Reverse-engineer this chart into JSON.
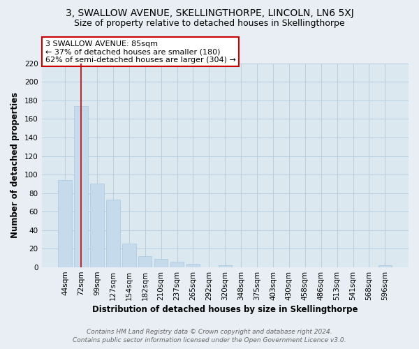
{
  "title": "3, SWALLOW AVENUE, SKELLINGTHORPE, LINCOLN, LN6 5XJ",
  "subtitle": "Size of property relative to detached houses in Skellingthorpe",
  "xlabel": "Distribution of detached houses by size in Skellingthorpe",
  "ylabel": "Number of detached properties",
  "bar_labels": [
    "44sqm",
    "72sqm",
    "99sqm",
    "127sqm",
    "154sqm",
    "182sqm",
    "210sqm",
    "237sqm",
    "265sqm",
    "292sqm",
    "320sqm",
    "348sqm",
    "375sqm",
    "403sqm",
    "430sqm",
    "458sqm",
    "486sqm",
    "513sqm",
    "541sqm",
    "568sqm",
    "596sqm"
  ],
  "bar_values": [
    94,
    174,
    90,
    73,
    26,
    12,
    9,
    6,
    4,
    0,
    2,
    0,
    0,
    0,
    0,
    0,
    0,
    0,
    0,
    0,
    2
  ],
  "bar_color_normal": "#c5daea",
  "bar_edge_color": "#a8c8e0",
  "red_line_x": 1.0,
  "annotation_line1": "3 SWALLOW AVENUE: 85sqm",
  "annotation_line2": "← 37% of detached houses are smaller (180)",
  "annotation_line3": "62% of semi-detached houses are larger (304) →",
  "ylim": [
    0,
    220
  ],
  "yticks": [
    0,
    20,
    40,
    60,
    80,
    100,
    120,
    140,
    160,
    180,
    200,
    220
  ],
  "footer_line1": "Contains HM Land Registry data © Crown copyright and database right 2024.",
  "footer_line2": "Contains public sector information licensed under the Open Government Licence v3.0.",
  "background_color": "#e8eef4",
  "plot_background_color": "#dce8f0",
  "grid_color": "#b8cede",
  "box_face_color": "#ffffff",
  "box_edge_color": "#cc0000",
  "title_fontsize": 10,
  "subtitle_fontsize": 9,
  "annotation_fontsize": 8,
  "axis_label_fontsize": 8.5,
  "tick_fontsize": 7.5,
  "footer_fontsize": 6.5
}
